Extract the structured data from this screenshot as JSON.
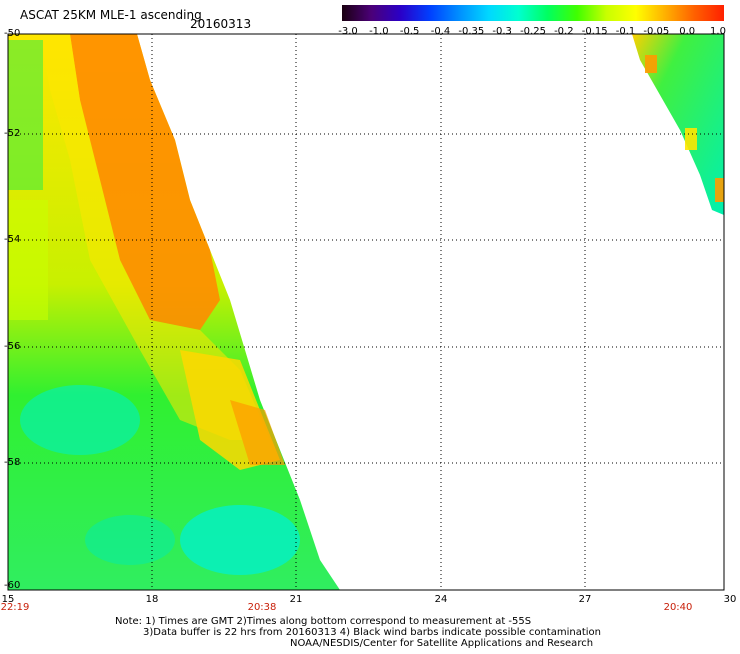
{
  "header": {
    "title": "ASCAT 25KM MLE-1 ascending",
    "date": "20160313"
  },
  "colorbar": {
    "labels": [
      "-3.0",
      "-1.0",
      "-0.5",
      "-0.4",
      "-0.35",
      "-0.3",
      "-0.25",
      "-0.2",
      "-0.15",
      "-0.1",
      "-0.05",
      "0.0",
      "1.0"
    ],
    "colors": [
      "#1a0010",
      "#4b0078",
      "#2a00c8",
      "#0040ff",
      "#0090ff",
      "#00d8ff",
      "#00ffd0",
      "#00ff60",
      "#40ff00",
      "#c8ff00",
      "#ffff00",
      "#ffb000",
      "#ff6000",
      "#ff2000"
    ]
  },
  "axes": {
    "y_labels": [
      "-50",
      "-52",
      "-54",
      "-56",
      "-58",
      "-60"
    ],
    "x_labels": [
      "15",
      "18",
      "21",
      "24",
      "27",
      "30"
    ],
    "time_labels": [
      "22:19",
      "20:38",
      "20:40"
    ]
  },
  "notes": {
    "line1": "Note: 1) Times are GMT 2)Times along bottom correspond to measurement at -55S",
    "line2": "3)Data buffer is 22 hrs from 20160313 4) Black wind barbs indicate possible contamination",
    "line3": "NOAA/NESDIS/Center for Satellite Applications and Research"
  },
  "map_colors": {
    "orange": "#ff8c00",
    "yellow": "#ffe600",
    "lime": "#aaff00",
    "green": "#22ee22",
    "cyan": "#00f0c0",
    "red": "#ff5000"
  }
}
